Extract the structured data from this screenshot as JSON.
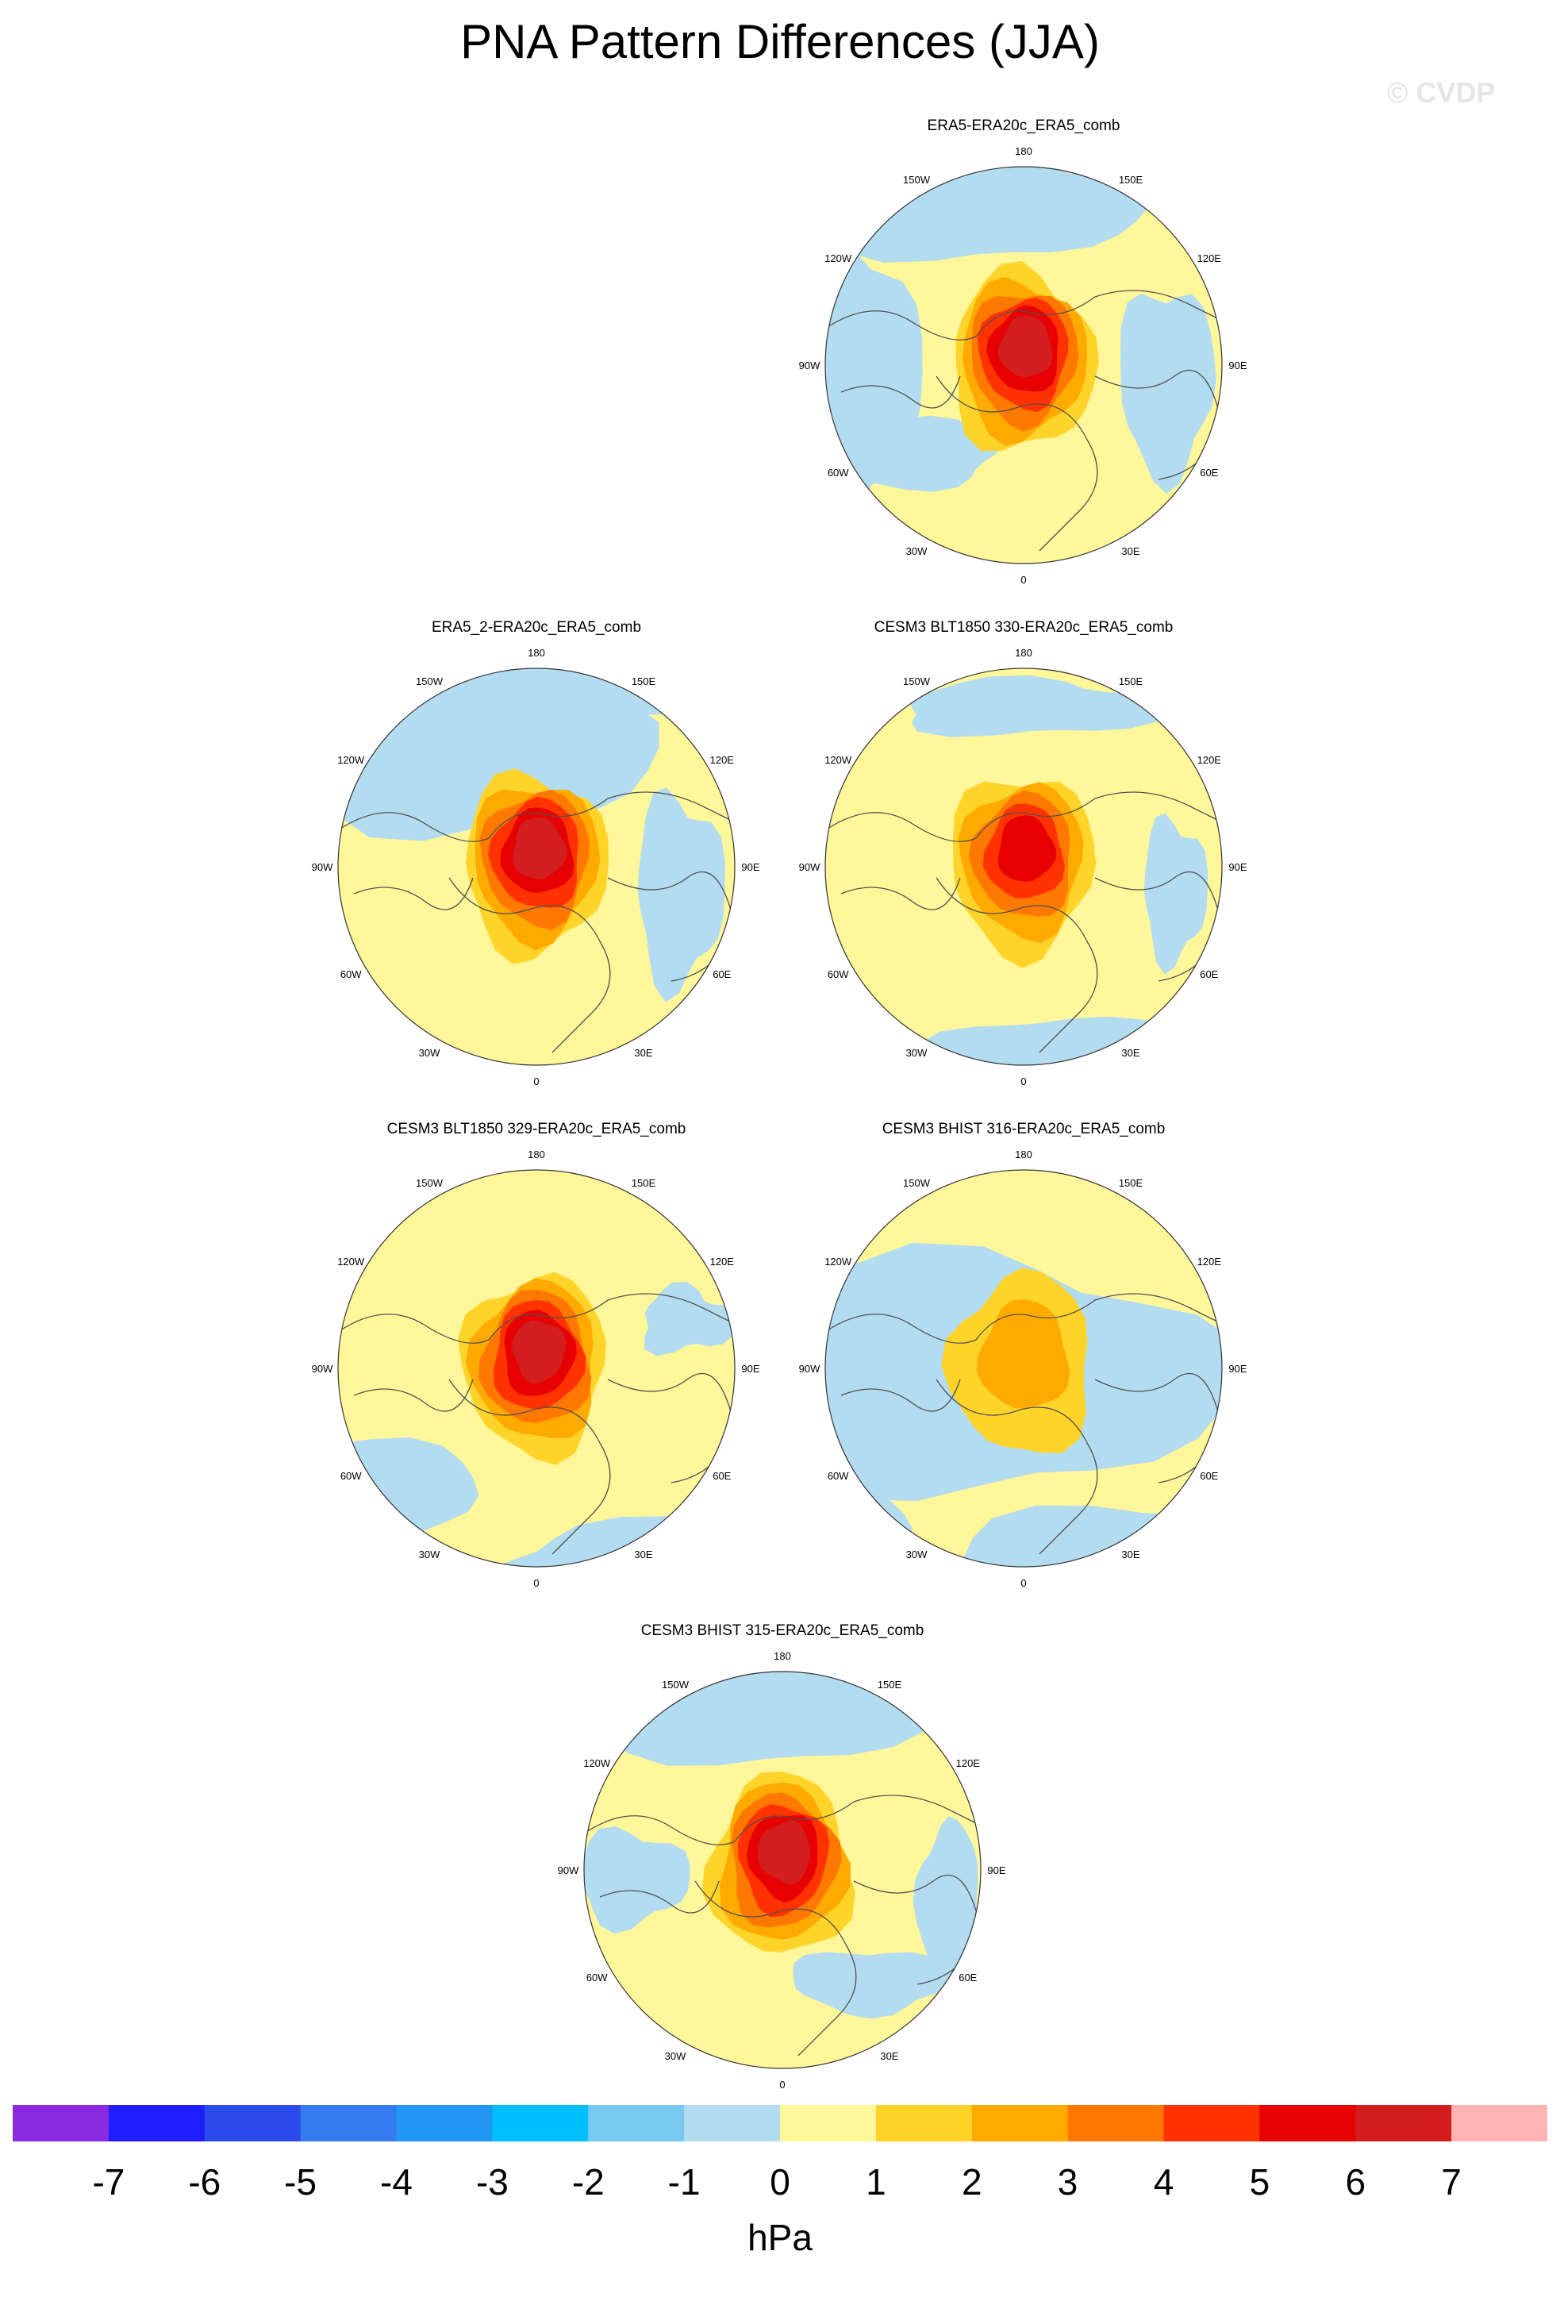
{
  "figure": {
    "title": "PNA Pattern Differences (JJA)",
    "watermark": "© CVDP"
  },
  "chart_data": {
    "type": "polar-contour-map",
    "projection": "north polar stereographic",
    "variable": "PNA pattern difference (sea level pressure)",
    "season": "JJA",
    "units": "hPa",
    "longitude_labels": [
      "180",
      "150E",
      "120E",
      "90E",
      "60E",
      "30E",
      "0",
      "30W",
      "60W",
      "90W",
      "120W",
      "150W"
    ],
    "colorbar": {
      "levels": [
        "-7",
        "-6",
        "-5",
        "-4",
        "-3",
        "-2",
        "-1",
        "0",
        "1",
        "2",
        "3",
        "4",
        "5",
        "6",
        "7"
      ],
      "colors": [
        "#8a2be2",
        "#1e1eff",
        "#2d4bea",
        "#3779ee",
        "#2196f3",
        "#00bfff",
        "#78c8f0",
        "#b4dcf0",
        "#fff79a",
        "#ffd42a",
        "#ffaa00",
        "#ff7800",
        "#ff3200",
        "#e60000",
        "#d21e1e",
        "#ffb4b4"
      ],
      "units": "hPa"
    },
    "panels": [
      {
        "title": "ERA5-ERA20c_ERA5_comb",
        "center_max_hPa": 6
      },
      {
        "title": "ERA5_2-ERA20c_ERA5_comb",
        "center_max_hPa": 6
      },
      {
        "title": "CESM3 BLT1850 330-ERA20c_ERA5_comb",
        "center_max_hPa": 5
      },
      {
        "title": "CESM3 BLT1850 329-ERA20c_ERA5_comb",
        "center_max_hPa": 6
      },
      {
        "title": "CESM3 BHIST 316-ERA20c_ERA5_comb",
        "center_max_hPa": 2
      },
      {
        "title": "CESM3 BHIST 315-ERA20c_ERA5_comb",
        "center_max_hPa": 6
      }
    ]
  }
}
